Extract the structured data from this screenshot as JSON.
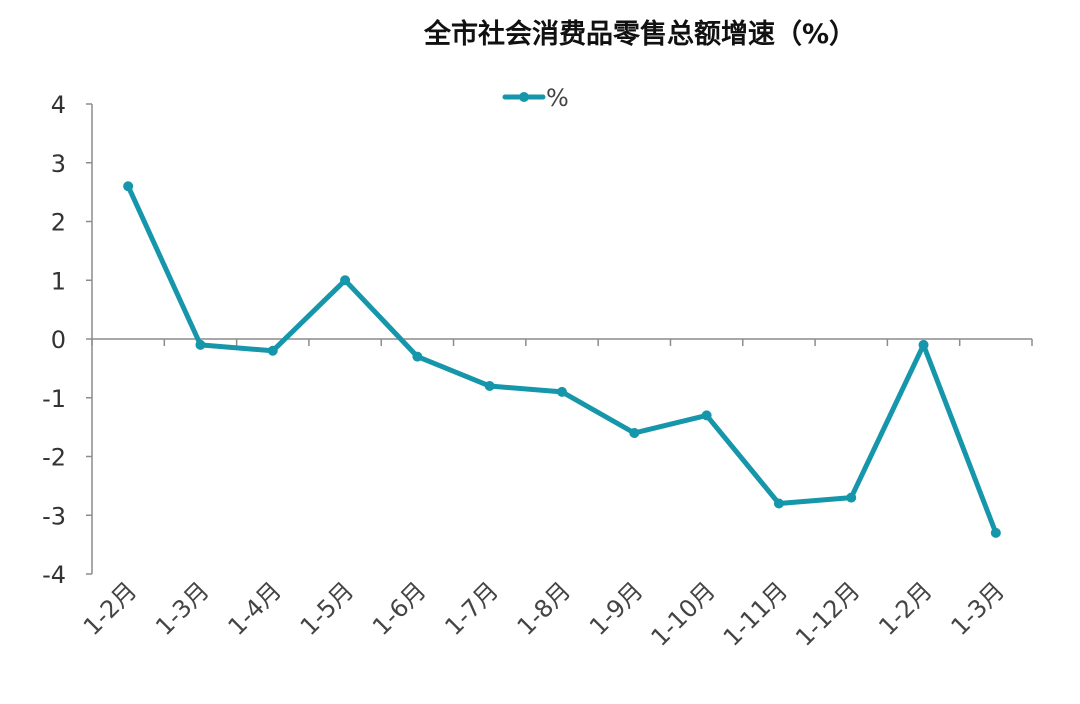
{
  "chart_data": {
    "type": "line",
    "title": "全市社会消费品零售总额增速（%）",
    "categories": [
      "1-2月",
      "1-3月",
      "1-4月",
      "1-5月",
      "1-6月",
      "1-7月",
      "1-8月",
      "1-9月",
      "1-10月",
      "1-11月",
      "1-12月",
      "1-2月",
      "1-3月"
    ],
    "series": [
      {
        "name": "%",
        "values": [
          2.6,
          -0.1,
          -0.2,
          1.0,
          -0.3,
          -0.8,
          -0.9,
          -1.6,
          -1.3,
          -2.8,
          -2.7,
          -0.1,
          -3.3
        ]
      }
    ],
    "ylim": [
      -4,
      4
    ],
    "yticks": [
      "4",
      "3",
      "2",
      "1",
      "0",
      "-1",
      "-2",
      "-3",
      "-4"
    ],
    "legend_position": "top-center",
    "grid": false,
    "colors": {
      "series": "#1596aa"
    }
  }
}
